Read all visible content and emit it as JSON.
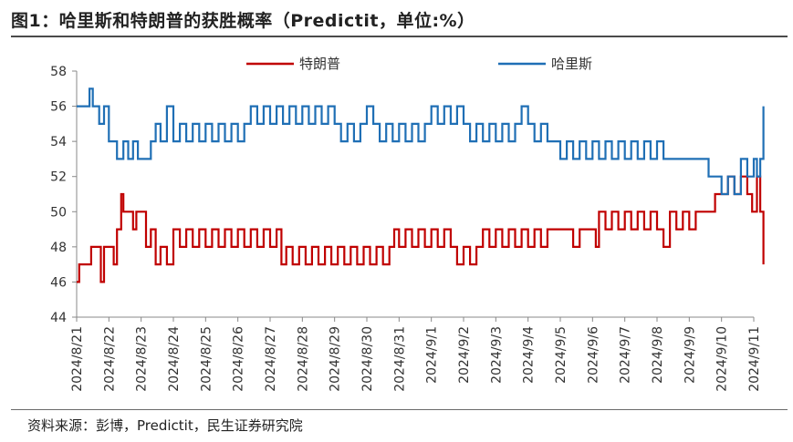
{
  "title": "图1：哈里斯和特朗普的获胜概率（Predictit，单位:%）",
  "source": "资料来源：彭博，Predictit，民生证券研究院",
  "chart_data": {
    "type": "line",
    "ylim": [
      44,
      58
    ],
    "yticks": [
      44,
      46,
      48,
      50,
      52,
      54,
      56,
      58
    ],
    "xlim": [
      0,
      21
    ],
    "categories": [
      "2024/8/21",
      "2024/8/22",
      "2024/8/23",
      "2024/8/24",
      "2024/8/25",
      "2024/8/26",
      "2024/8/27",
      "2024/8/28",
      "2024/8/29",
      "2024/8/30",
      "2024/8/31",
      "2024/9/1",
      "2024/9/2",
      "2024/9/3",
      "2024/9/4",
      "2024/9/5",
      "2024/9/6",
      "2024/9/7",
      "2024/9/8",
      "2024/9/9",
      "2024/9/10",
      "2024/9/11"
    ],
    "legend_position": "top-center",
    "grid": false,
    "series": [
      {
        "name": "特朗普",
        "color": "#c00000",
        "points": [
          [
            0,
            46
          ],
          [
            0.08,
            47
          ],
          [
            0.35,
            47
          ],
          [
            0.45,
            48
          ],
          [
            0.7,
            48
          ],
          [
            0.75,
            46
          ],
          [
            0.85,
            48
          ],
          [
            1.1,
            48
          ],
          [
            1.15,
            47
          ],
          [
            1.25,
            49
          ],
          [
            1.38,
            51
          ],
          [
            1.45,
            50
          ],
          [
            1.7,
            50
          ],
          [
            1.75,
            49
          ],
          [
            1.85,
            50
          ],
          [
            2.05,
            50
          ],
          [
            2.15,
            48
          ],
          [
            2.3,
            49
          ],
          [
            2.45,
            47
          ],
          [
            2.6,
            48
          ],
          [
            2.8,
            47
          ],
          [
            3.0,
            49
          ],
          [
            3.2,
            48
          ],
          [
            3.4,
            49
          ],
          [
            3.6,
            48
          ],
          [
            3.8,
            49
          ],
          [
            4.0,
            48
          ],
          [
            4.2,
            49
          ],
          [
            4.4,
            48
          ],
          [
            4.6,
            49
          ],
          [
            4.8,
            48
          ],
          [
            5.0,
            49
          ],
          [
            5.2,
            48
          ],
          [
            5.4,
            49
          ],
          [
            5.6,
            48
          ],
          [
            5.8,
            49
          ],
          [
            6.0,
            48
          ],
          [
            6.2,
            49
          ],
          [
            6.35,
            47
          ],
          [
            6.5,
            48
          ],
          [
            6.7,
            47
          ],
          [
            6.9,
            48
          ],
          [
            7.1,
            47
          ],
          [
            7.3,
            48
          ],
          [
            7.5,
            47
          ],
          [
            7.7,
            48
          ],
          [
            7.9,
            47
          ],
          [
            8.1,
            48
          ],
          [
            8.3,
            47
          ],
          [
            8.5,
            48
          ],
          [
            8.7,
            47
          ],
          [
            8.9,
            48
          ],
          [
            9.1,
            47
          ],
          [
            9.3,
            48
          ],
          [
            9.5,
            47
          ],
          [
            9.7,
            48
          ],
          [
            9.85,
            49
          ],
          [
            10.0,
            48
          ],
          [
            10.2,
            49
          ],
          [
            10.4,
            48
          ],
          [
            10.6,
            49
          ],
          [
            10.8,
            48
          ],
          [
            11.0,
            49
          ],
          [
            11.2,
            48
          ],
          [
            11.4,
            49
          ],
          [
            11.6,
            48
          ],
          [
            11.8,
            47
          ],
          [
            12.0,
            48
          ],
          [
            12.2,
            47
          ],
          [
            12.4,
            48
          ],
          [
            12.6,
            49
          ],
          [
            12.8,
            48
          ],
          [
            13.0,
            49
          ],
          [
            13.2,
            48
          ],
          [
            13.4,
            49
          ],
          [
            13.6,
            48
          ],
          [
            13.8,
            49
          ],
          [
            14.0,
            48
          ],
          [
            14.2,
            49
          ],
          [
            14.4,
            48
          ],
          [
            14.6,
            49
          ],
          [
            14.8,
            49
          ],
          [
            15.0,
            49
          ],
          [
            15.2,
            49
          ],
          [
            15.4,
            48
          ],
          [
            15.6,
            49
          ],
          [
            15.8,
            49
          ],
          [
            16.0,
            49
          ],
          [
            16.1,
            48
          ],
          [
            16.2,
            50
          ],
          [
            16.4,
            49
          ],
          [
            16.6,
            50
          ],
          [
            16.8,
            49
          ],
          [
            17.0,
            50
          ],
          [
            17.2,
            49
          ],
          [
            17.4,
            50
          ],
          [
            17.6,
            49
          ],
          [
            17.8,
            50
          ],
          [
            18.0,
            49
          ],
          [
            18.2,
            48
          ],
          [
            18.4,
            50
          ],
          [
            18.6,
            49
          ],
          [
            18.8,
            50
          ],
          [
            19.0,
            49
          ],
          [
            19.2,
            50
          ],
          [
            19.4,
            50
          ],
          [
            19.6,
            50
          ],
          [
            19.8,
            51
          ],
          [
            20.0,
            51
          ],
          [
            20.2,
            52
          ],
          [
            20.4,
            51
          ],
          [
            20.6,
            52
          ],
          [
            20.8,
            51
          ],
          [
            20.95,
            50
          ],
          [
            21.1,
            52
          ],
          [
            21.2,
            50
          ],
          [
            21.3,
            47
          ]
        ]
      },
      {
        "name": "哈里斯",
        "color": "#1f6fb5",
        "points": [
          [
            0,
            56
          ],
          [
            0.35,
            56
          ],
          [
            0.4,
            57
          ],
          [
            0.5,
            56
          ],
          [
            0.7,
            55
          ],
          [
            0.85,
            56
          ],
          [
            1.0,
            54
          ],
          [
            1.1,
            54
          ],
          [
            1.25,
            53
          ],
          [
            1.45,
            54
          ],
          [
            1.6,
            53
          ],
          [
            1.75,
            54
          ],
          [
            1.9,
            53
          ],
          [
            2.1,
            53
          ],
          [
            2.3,
            54
          ],
          [
            2.45,
            55
          ],
          [
            2.6,
            54
          ],
          [
            2.8,
            56
          ],
          [
            3.0,
            54
          ],
          [
            3.2,
            55
          ],
          [
            3.4,
            54
          ],
          [
            3.6,
            55
          ],
          [
            3.8,
            54
          ],
          [
            4.0,
            55
          ],
          [
            4.2,
            54
          ],
          [
            4.4,
            55
          ],
          [
            4.6,
            54
          ],
          [
            4.8,
            55
          ],
          [
            5.0,
            54
          ],
          [
            5.2,
            55
          ],
          [
            5.4,
            56
          ],
          [
            5.6,
            55
          ],
          [
            5.8,
            56
          ],
          [
            6.0,
            55
          ],
          [
            6.2,
            56
          ],
          [
            6.4,
            55
          ],
          [
            6.6,
            56
          ],
          [
            6.8,
            55
          ],
          [
            7.0,
            56
          ],
          [
            7.2,
            55
          ],
          [
            7.4,
            56
          ],
          [
            7.6,
            55
          ],
          [
            7.8,
            56
          ],
          [
            8.0,
            55
          ],
          [
            8.2,
            54
          ],
          [
            8.4,
            55
          ],
          [
            8.6,
            54
          ],
          [
            8.8,
            55
          ],
          [
            9.0,
            56
          ],
          [
            9.2,
            55
          ],
          [
            9.4,
            54
          ],
          [
            9.6,
            55
          ],
          [
            9.8,
            54
          ],
          [
            10.0,
            55
          ],
          [
            10.2,
            54
          ],
          [
            10.4,
            55
          ],
          [
            10.6,
            54
          ],
          [
            10.8,
            55
          ],
          [
            11.0,
            56
          ],
          [
            11.2,
            55
          ],
          [
            11.4,
            56
          ],
          [
            11.6,
            55
          ],
          [
            11.8,
            56
          ],
          [
            12.0,
            55
          ],
          [
            12.2,
            54
          ],
          [
            12.4,
            55
          ],
          [
            12.6,
            54
          ],
          [
            12.8,
            55
          ],
          [
            13.0,
            54
          ],
          [
            13.2,
            55
          ],
          [
            13.4,
            54
          ],
          [
            13.6,
            55
          ],
          [
            13.8,
            56
          ],
          [
            14.0,
            55
          ],
          [
            14.2,
            54
          ],
          [
            14.4,
            55
          ],
          [
            14.6,
            54
          ],
          [
            14.8,
            54
          ],
          [
            15.0,
            53
          ],
          [
            15.2,
            54
          ],
          [
            15.4,
            53
          ],
          [
            15.6,
            54
          ],
          [
            15.8,
            53
          ],
          [
            16.0,
            54
          ],
          [
            16.2,
            53
          ],
          [
            16.4,
            54
          ],
          [
            16.6,
            53
          ],
          [
            16.8,
            54
          ],
          [
            17.0,
            53
          ],
          [
            17.2,
            54
          ],
          [
            17.4,
            53
          ],
          [
            17.6,
            54
          ],
          [
            17.8,
            53
          ],
          [
            18.0,
            54
          ],
          [
            18.2,
            53
          ],
          [
            18.4,
            53
          ],
          [
            18.6,
            53
          ],
          [
            18.8,
            53
          ],
          [
            19.0,
            53
          ],
          [
            19.2,
            53
          ],
          [
            19.4,
            53
          ],
          [
            19.6,
            52
          ],
          [
            19.8,
            52
          ],
          [
            20.0,
            51
          ],
          [
            20.2,
            52
          ],
          [
            20.4,
            51
          ],
          [
            20.6,
            53
          ],
          [
            20.8,
            52
          ],
          [
            21.0,
            53
          ],
          [
            21.1,
            52
          ],
          [
            21.2,
            53
          ],
          [
            21.3,
            56
          ]
        ]
      }
    ]
  }
}
